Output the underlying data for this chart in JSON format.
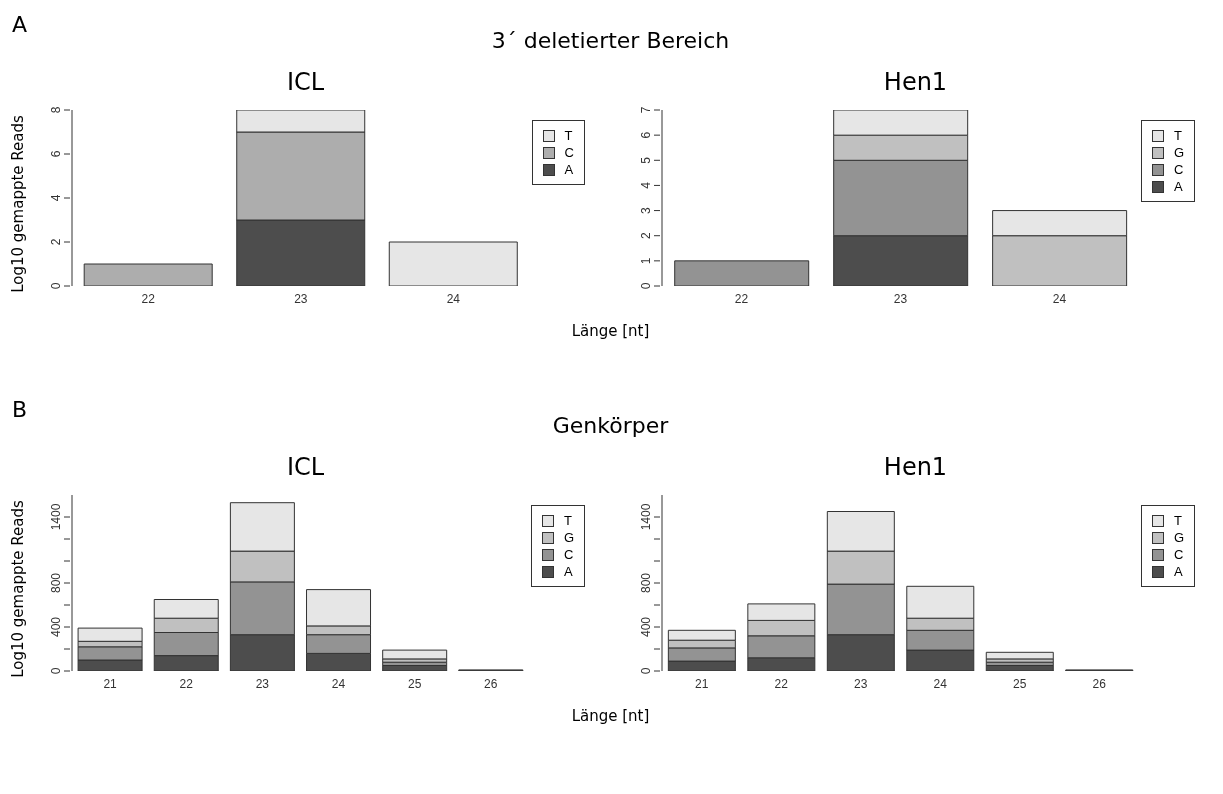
{
  "chart_data": [
    {
      "type": "bar",
      "title": "ICL",
      "annotations": [
        "A",
        "3´ deletierter Bereich"
      ],
      "xlabel": "Länge [nt]",
      "ylabel": "Log10 gemappte Reads",
      "categories": [
        "22",
        "23",
        "24"
      ],
      "stacked": true,
      "ylim": [
        0,
        8
      ],
      "yticks": [
        0,
        2,
        4,
        6,
        8
      ],
      "grid": false,
      "legend": "top right",
      "series": [
        {
          "name": "A",
          "color": "#4d4d4d",
          "values": [
            0,
            3,
            0
          ]
        },
        {
          "name": "C",
          "color": "#adadad",
          "values": [
            1,
            4,
            0
          ]
        },
        {
          "name": "T",
          "color": "#e6e6e6",
          "values": [
            0,
            1,
            2
          ]
        }
      ]
    },
    {
      "type": "bar",
      "title": "Hen1",
      "categories": [
        "22",
        "23",
        "24"
      ],
      "stacked": true,
      "ylim": [
        0,
        7
      ],
      "yticks": [
        0,
        1,
        2,
        3,
        4,
        5,
        6,
        7
      ],
      "grid": false,
      "legend": "top right",
      "series": [
        {
          "name": "A",
          "color": "#4d4d4d",
          "values": [
            0,
            2,
            0
          ]
        },
        {
          "name": "C",
          "color": "#939393",
          "values": [
            1,
            3,
            0
          ]
        },
        {
          "name": "G",
          "color": "#c0c0c0",
          "values": [
            0,
            1,
            2
          ]
        },
        {
          "name": "T",
          "color": "#e6e6e6",
          "values": [
            0,
            1,
            1
          ]
        }
      ]
    },
    {
      "type": "bar",
      "title": "ICL",
      "annotations": [
        "B",
        "Genkörper"
      ],
      "xlabel": "Länge [nt]",
      "ylabel": "Log10 gemappte Reads",
      "categories": [
        "21",
        "22",
        "23",
        "24",
        "25",
        "26"
      ],
      "stacked": true,
      "ylim": [
        0,
        1600
      ],
      "yticks": [
        0,
        {
          "value": 200,
          "label": null
        },
        400,
        {
          "value": 600,
          "label": null
        },
        800,
        {
          "value": 1000,
          "label": null
        },
        {
          "value": 1200,
          "label": null
        },
        1400
      ],
      "grid": false,
      "legend": "top right",
      "series": [
        {
          "name": "A",
          "color": "#4d4d4d",
          "values": [
            100,
            140,
            330,
            160,
            50,
            10
          ]
        },
        {
          "name": "C",
          "color": "#939393",
          "values": [
            120,
            210,
            480,
            170,
            30,
            null
          ]
        },
        {
          "name": "G",
          "color": "#c0c0c0",
          "values": [
            50,
            130,
            280,
            80,
            30,
            null
          ]
        },
        {
          "name": "T",
          "color": "#e6e6e6",
          "values": [
            120,
            170,
            440,
            330,
            80,
            null
          ]
        }
      ]
    },
    {
      "type": "bar",
      "title": "Hen1",
      "categories": [
        "21",
        "22",
        "23",
        "24",
        "25",
        "26"
      ],
      "stacked": true,
      "ylim": [
        0,
        1600
      ],
      "yticks": [
        0,
        {
          "value": 200,
          "label": null
        },
        400,
        {
          "value": 600,
          "label": null
        },
        800,
        {
          "value": 1000,
          "label": null
        },
        {
          "value": 1200,
          "label": null
        },
        1400
      ],
      "grid": false,
      "legend": "top right",
      "series": [
        {
          "name": "A",
          "color": "#4d4d4d",
          "values": [
            90,
            120,
            330,
            190,
            50,
            10
          ]
        },
        {
          "name": "C",
          "color": "#939393",
          "values": [
            120,
            200,
            460,
            180,
            30,
            null
          ]
        },
        {
          "name": "G",
          "color": "#c0c0c0",
          "values": [
            70,
            140,
            300,
            110,
            30,
            null
          ]
        },
        {
          "name": "T",
          "color": "#e6e6e6",
          "values": [
            90,
            150,
            360,
            290,
            60,
            null
          ]
        }
      ]
    }
  ]
}
